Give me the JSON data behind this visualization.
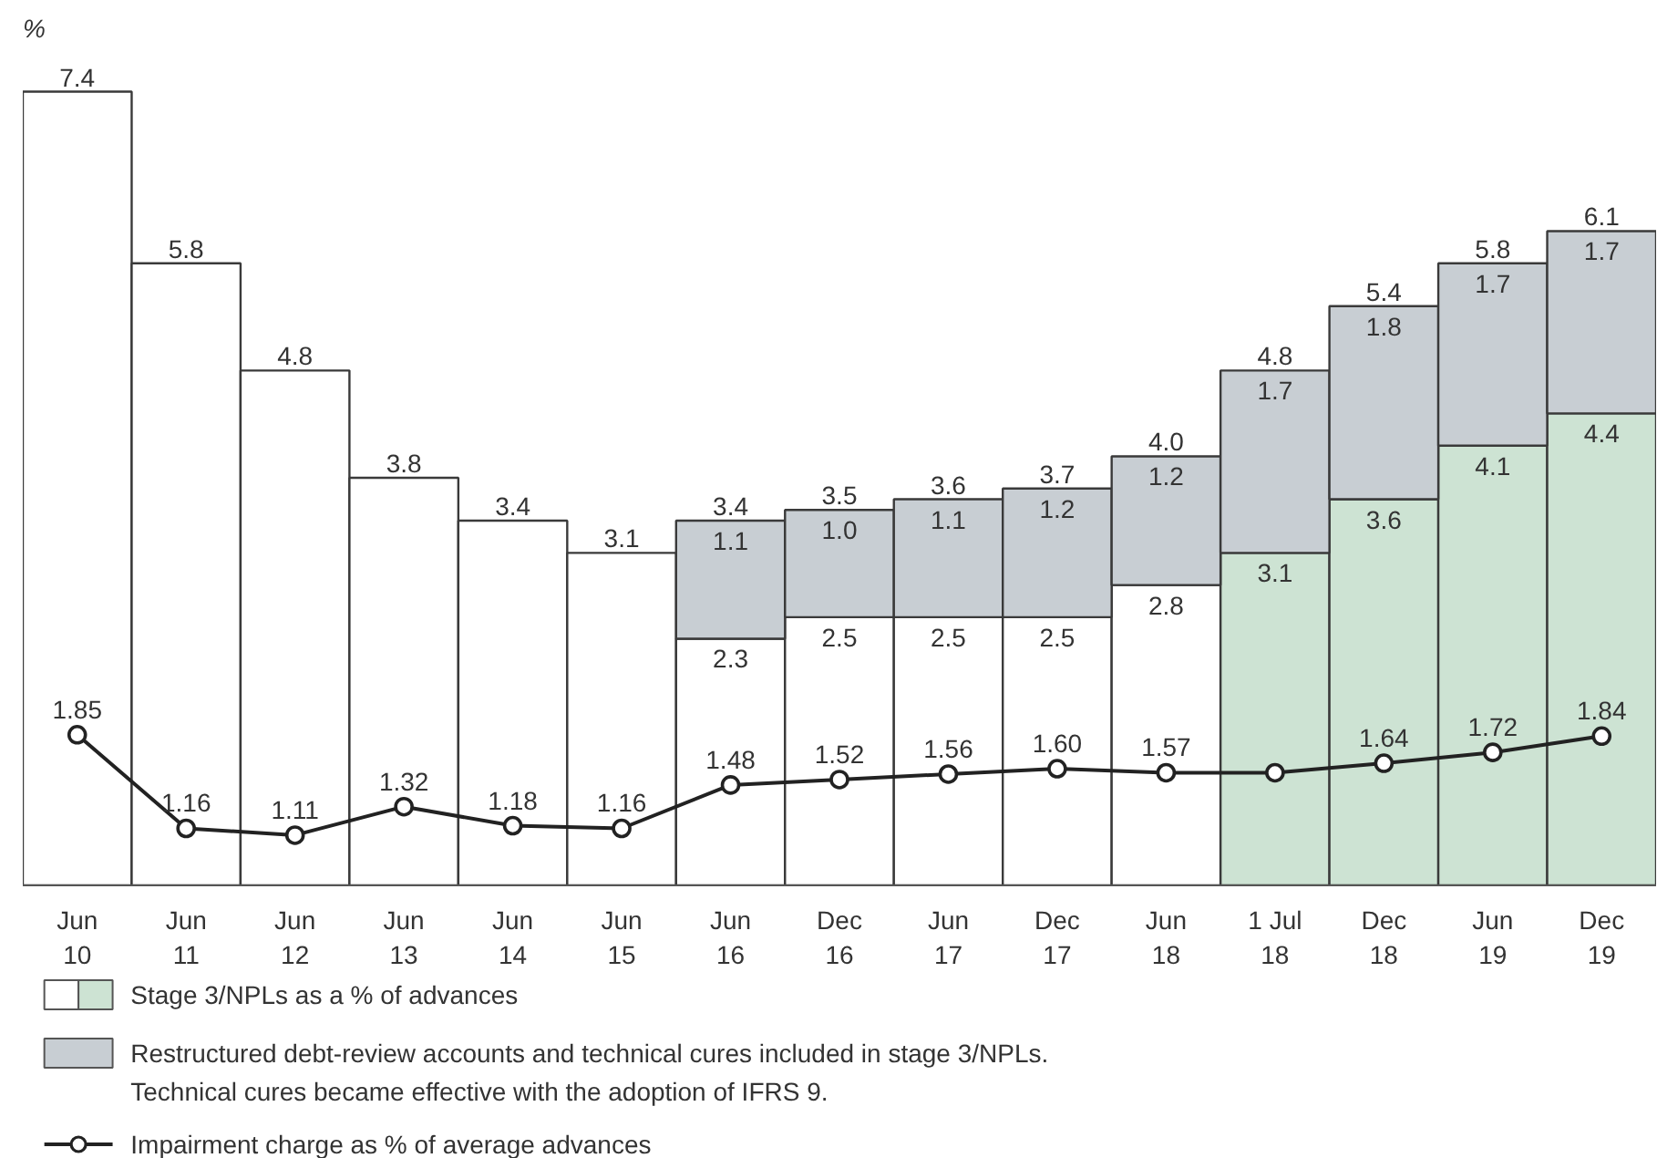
{
  "chart_data": {
    "type": "bar",
    "stacked": true,
    "ylabel": "%",
    "categories": [
      "Jun 10",
      "Jun 11",
      "Jun 12",
      "Jun 13",
      "Jun 14",
      "Jun 15",
      "Jun 16",
      "Dec 16",
      "Jun 17",
      "Dec 17",
      "Jun 18",
      "1 Jul 18",
      "Dec 18",
      "Jun 19",
      "Dec 19"
    ],
    "series": [
      {
        "name": "Stage 3/NPLs as a % of advances",
        "colors": [
          "#ffffff",
          "#ffffff",
          "#ffffff",
          "#ffffff",
          "#ffffff",
          "#ffffff",
          "#ffffff",
          "#ffffff",
          "#ffffff",
          "#ffffff",
          "#ffffff",
          "#cde3d3",
          "#cde3d3",
          "#cde3d3",
          "#cde3d3"
        ],
        "values": [
          7.4,
          5.8,
          4.8,
          3.8,
          3.4,
          3.1,
          2.3,
          2.5,
          2.5,
          2.5,
          2.8,
          3.1,
          3.6,
          4.1,
          4.4
        ],
        "value_labels": [
          null,
          null,
          null,
          null,
          null,
          null,
          "2.3",
          "2.5",
          "2.5",
          "2.5",
          "2.8",
          "3.1",
          "3.6",
          "4.1",
          "4.4"
        ]
      },
      {
        "name": "Restructured debt-review accounts and technical cures included in stage 3/NPLs.\nTechnical cures became effective with the adoption of IFRS 9.",
        "color": "#c8ced3",
        "values": [
          null,
          null,
          null,
          null,
          null,
          null,
          1.1,
          1.0,
          1.1,
          1.2,
          1.2,
          1.7,
          1.8,
          1.7,
          1.7
        ],
        "value_labels": [
          null,
          null,
          null,
          null,
          null,
          null,
          "1.1",
          "1.0",
          "1.1",
          "1.2",
          "1.2",
          "1.7",
          "1.8",
          "1.7",
          "1.7"
        ]
      },
      {
        "name": "Impairment charge as % of average advances",
        "type": "line",
        "axis": "y2",
        "color": "#222222",
        "marker": "circle",
        "values": [
          1.85,
          1.16,
          1.11,
          1.32,
          1.18,
          1.16,
          1.48,
          1.52,
          1.56,
          1.6,
          1.57,
          1.57,
          1.64,
          1.72,
          1.84
        ],
        "value_labels": [
          "1.85",
          "1.16",
          "1.11",
          "1.32",
          "1.18",
          "1.16",
          "1.48",
          "1.52",
          "1.56",
          "1.60",
          "1.57",
          null,
          "1.64",
          "1.72",
          "1.84"
        ]
      }
    ],
    "totals": [
      "7.4",
      "5.8",
      "4.8",
      "3.8",
      "3.4",
      "3.1",
      "3.4",
      "3.5",
      "3.6",
      "3.7",
      "4.0",
      "4.8",
      "5.4",
      "5.8",
      "6.1"
    ],
    "tick_labels": "x",
    "grid": false,
    "legend": "bottom"
  }
}
